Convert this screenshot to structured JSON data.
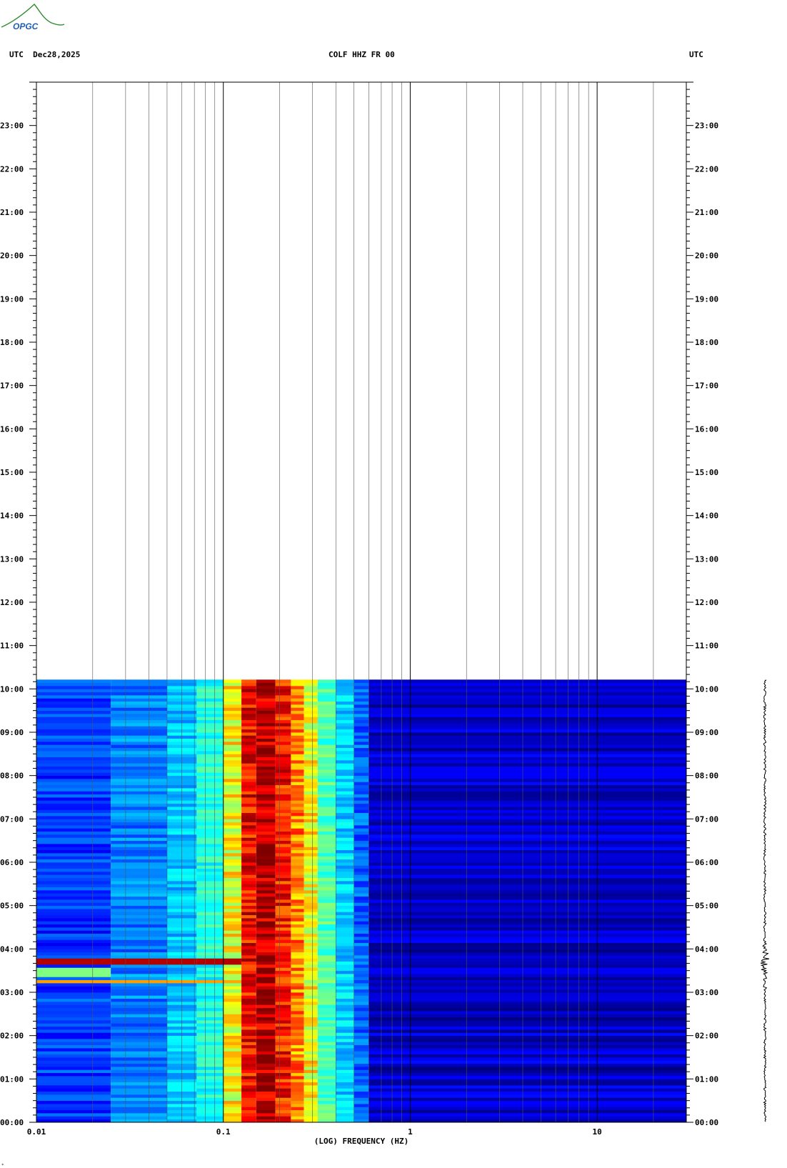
{
  "header": {
    "left": "UTC  Dec28,2025",
    "center": "COLF HHZ FR 00",
    "right": "UTC"
  },
  "logo": {
    "text": "OPGC",
    "icon": "opgc-logo"
  },
  "chart_data": {
    "type": "heatmap",
    "title": "COLF HHZ FR 00",
    "xlabel": "(LOG) FREQUENCY (HZ)",
    "ylabel": "UTC",
    "x_scale": "log",
    "xlim": [
      0.01,
      30
    ],
    "x_ticks": [
      {
        "value": 0.01,
        "label": "0.01"
      },
      {
        "value": 0.1,
        "label": "0.1"
      },
      {
        "value": 1,
        "label": "1"
      },
      {
        "value": 10,
        "label": "10"
      }
    ],
    "y_ticks": [
      "00:00",
      "01:00",
      "02:00",
      "03:00",
      "04:00",
      "05:00",
      "06:00",
      "07:00",
      "08:00",
      "09:00",
      "10:00",
      "11:00",
      "12:00",
      "13:00",
      "14:00",
      "15:00",
      "16:00",
      "17:00",
      "18:00",
      "19:00",
      "20:00",
      "21:00",
      "22:00",
      "23:00"
    ],
    "ylim_hours": [
      0,
      24
    ],
    "data_end_hour": 10.2,
    "grid": true,
    "colormap": "jet",
    "spectral_bands": [
      {
        "f_from": 0.01,
        "f_to": 0.025,
        "level": 0.18
      },
      {
        "f_from": 0.025,
        "f_to": 0.05,
        "level": 0.25
      },
      {
        "f_from": 0.05,
        "f_to": 0.072,
        "level": 0.32
      },
      {
        "f_from": 0.072,
        "f_to": 0.1,
        "level": 0.4
      },
      {
        "f_from": 0.1,
        "f_to": 0.125,
        "level": 0.62
      },
      {
        "f_from": 0.125,
        "f_to": 0.15,
        "level": 0.88
      },
      {
        "f_from": 0.15,
        "f_to": 0.19,
        "level": 0.95
      },
      {
        "f_from": 0.19,
        "f_to": 0.23,
        "level": 0.86
      },
      {
        "f_from": 0.23,
        "f_to": 0.27,
        "level": 0.74
      },
      {
        "f_from": 0.27,
        "f_to": 0.32,
        "level": 0.62
      },
      {
        "f_from": 0.32,
        "f_to": 0.4,
        "level": 0.45
      },
      {
        "f_from": 0.4,
        "f_to": 0.5,
        "level": 0.33
      },
      {
        "f_from": 0.5,
        "f_to": 0.6,
        "level": 0.22
      },
      {
        "f_from": 0.6,
        "f_to": 30,
        "level": 0.07
      }
    ],
    "events": [
      {
        "from_hour": 3.6,
        "to_hour": 3.8,
        "f_max": 0.125,
        "level": 0.95
      },
      {
        "from_hour": 3.2,
        "to_hour": 3.35,
        "f_max": 0.1,
        "level": 0.72
      },
      {
        "from_hour": 3.35,
        "to_hour": 3.6,
        "f_max": 0.025,
        "level": 0.5
      }
    ],
    "colors": {
      "dark_blue": "#00009c",
      "blue": "#0033ff",
      "cyan": "#00ffff",
      "yellow": "#ffff00",
      "red": "#ff0000",
      "dark_red": "#8b0000"
    }
  }
}
